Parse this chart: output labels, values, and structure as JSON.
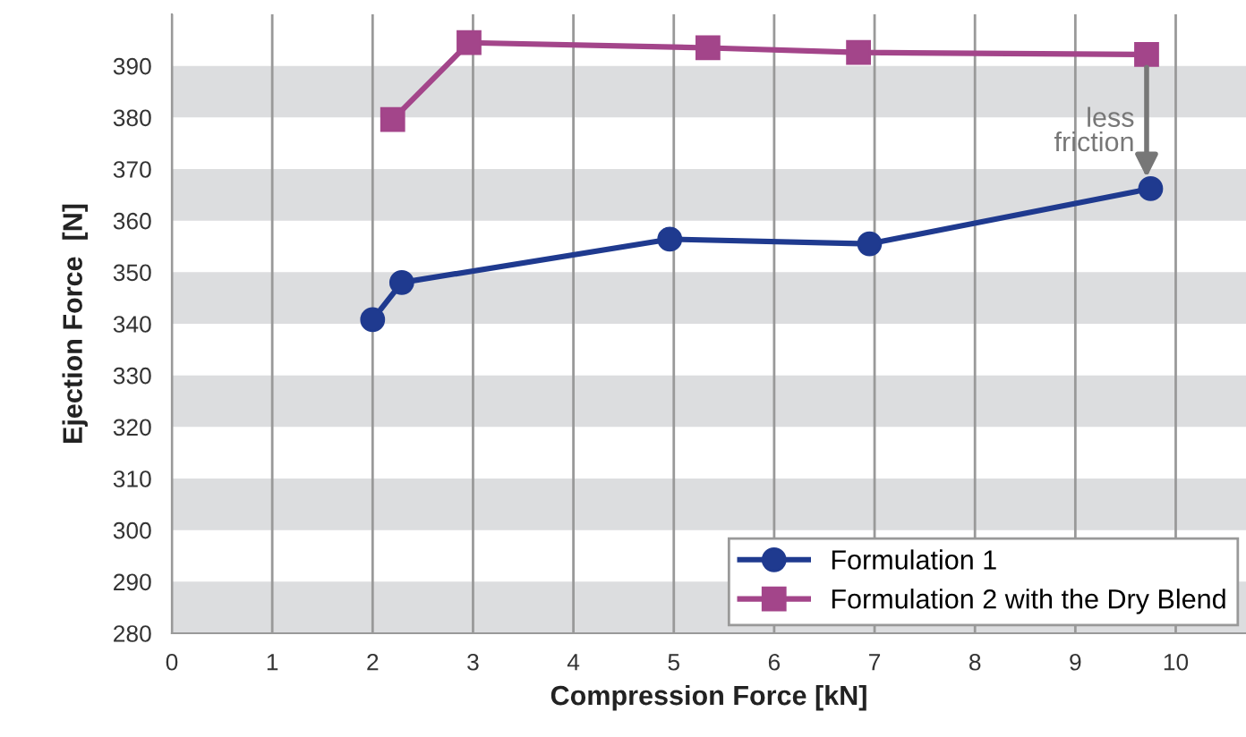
{
  "chart_data": {
    "type": "line",
    "xlabel": "Compression Force [kN]",
    "ylabel": "Ejection Force  [N]",
    "xlim": [
      0,
      10.7
    ],
    "xticks": [
      0,
      1,
      2,
      3,
      4,
      5,
      6,
      7,
      8,
      9,
      10
    ],
    "ylim": [
      280,
      400
    ],
    "yticks": [
      280,
      290,
      300,
      310,
      320,
      330,
      340,
      350,
      360,
      370,
      380,
      390
    ],
    "grid": "x",
    "legend": "bottom right",
    "series": [
      {
        "name": "Formulation 1",
        "color": "#1f3a8f",
        "marker": "circle",
        "x": [
          2.0,
          2.29,
          4.96,
          6.95,
          9.75
        ],
        "values": [
          340.8,
          348.0,
          356.4,
          355.5,
          366.2
        ]
      },
      {
        "name": "Formulation 2 with the Dry Blend",
        "color": "#a3458a",
        "marker": "square",
        "x": [
          2.2,
          2.96,
          5.34,
          6.84,
          9.71
        ],
        "values": [
          379.6,
          394.5,
          393.5,
          392.6,
          392.2
        ]
      }
    ],
    "bands": [
      {
        "axis": "y",
        "from": 280,
        "to": 290,
        "color": "#dcdddf"
      },
      {
        "axis": "y",
        "from": 300,
        "to": 310,
        "color": "#dcdddf"
      },
      {
        "axis": "y",
        "from": 320,
        "to": 330,
        "color": "#dcdddf"
      },
      {
        "axis": "y",
        "from": 340,
        "to": 350,
        "color": "#dcdddf"
      },
      {
        "axis": "y",
        "from": 360,
        "to": 370,
        "color": "#dcdddf"
      },
      {
        "axis": "y",
        "from": 380,
        "to": 390,
        "color": "#dcdddf"
      }
    ],
    "annotations": [
      {
        "text": "less\nfriction",
        "x": 9.71,
        "y": 392.2
      }
    ]
  }
}
